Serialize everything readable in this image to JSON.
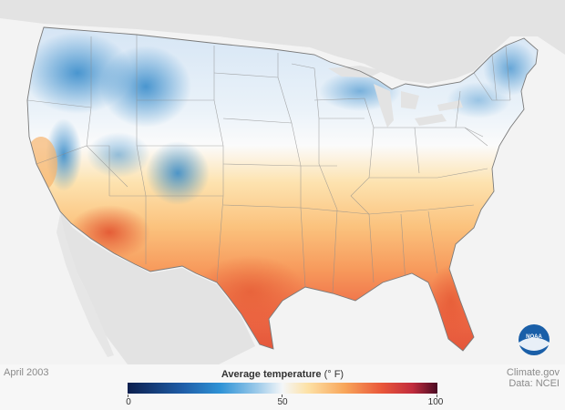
{
  "date_label": "April 2003",
  "legend": {
    "title": "Average temperature",
    "unit": " (° F)",
    "ticks": [
      "0",
      "50",
      "100"
    ],
    "colors": [
      "#0c1f4e",
      "#1f5ea8",
      "#2f93d6",
      "#9ecbea",
      "#f4f6f8",
      "#fde2a7",
      "#f8a65a",
      "#e9573a",
      "#c12c3d",
      "#4a0a23"
    ]
  },
  "credit": {
    "site": "Climate.gov",
    "data": "Data: NCEI"
  },
  "logo": {
    "text": "NOAA"
  }
}
